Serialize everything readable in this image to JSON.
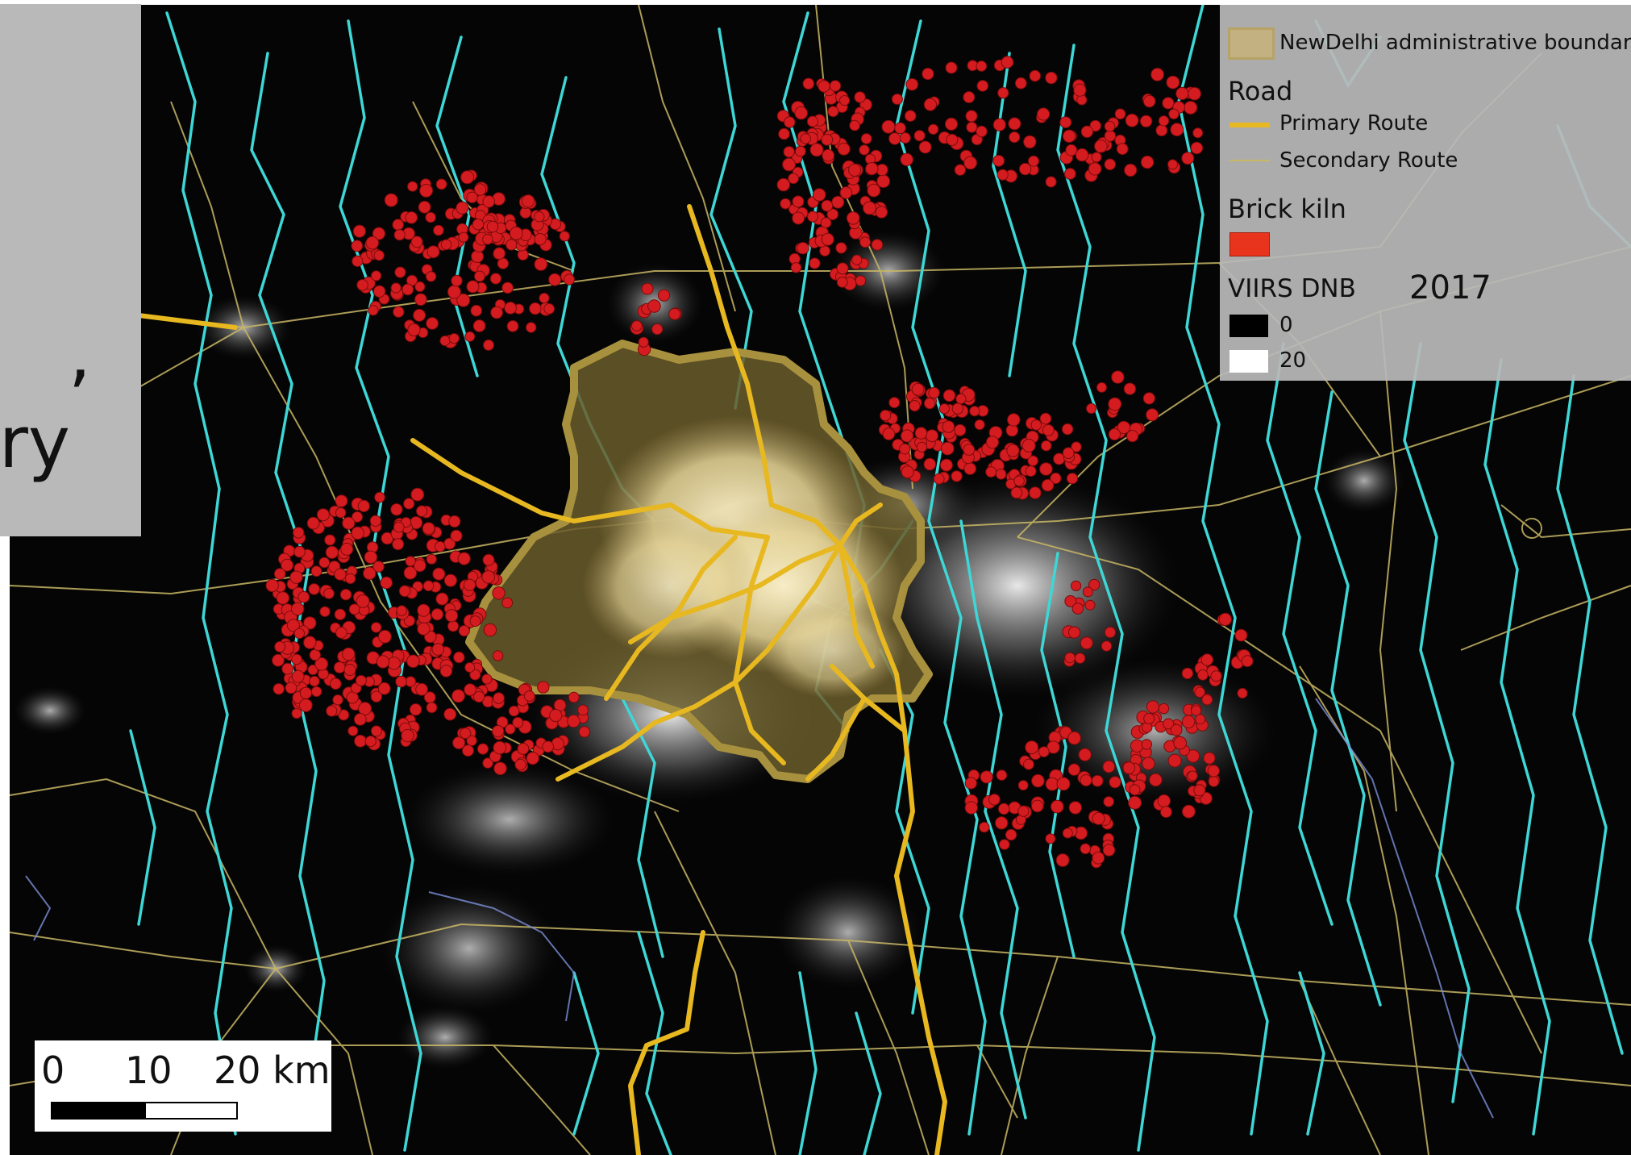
{
  "side_panel": {
    "text_fragments": [
      ",",
      "ry"
    ]
  },
  "legend": {
    "boundary_label": "NewDelhi administrative boundary",
    "road_header": "Road",
    "primary_label": "Primary Route",
    "secondary_label": "Secondary Route",
    "kiln_header": "Brick kiln",
    "viirs_header": "VIIRS DNB",
    "year": "2017",
    "viirs_low": "0",
    "viirs_high": "20"
  },
  "scalebar": {
    "labels": [
      "0",
      "10",
      "20 km"
    ]
  },
  "colors": {
    "background": "#050505",
    "boundary_fill": "#8a7a3c",
    "city_glow": "#efe2b0",
    "primary_route": "#e8b820",
    "secondary_route": "#c9b765",
    "river": "#3fd6d6",
    "brick_kiln": "#d41c20",
    "legend_kiln_swatch": "#e8341c"
  }
}
